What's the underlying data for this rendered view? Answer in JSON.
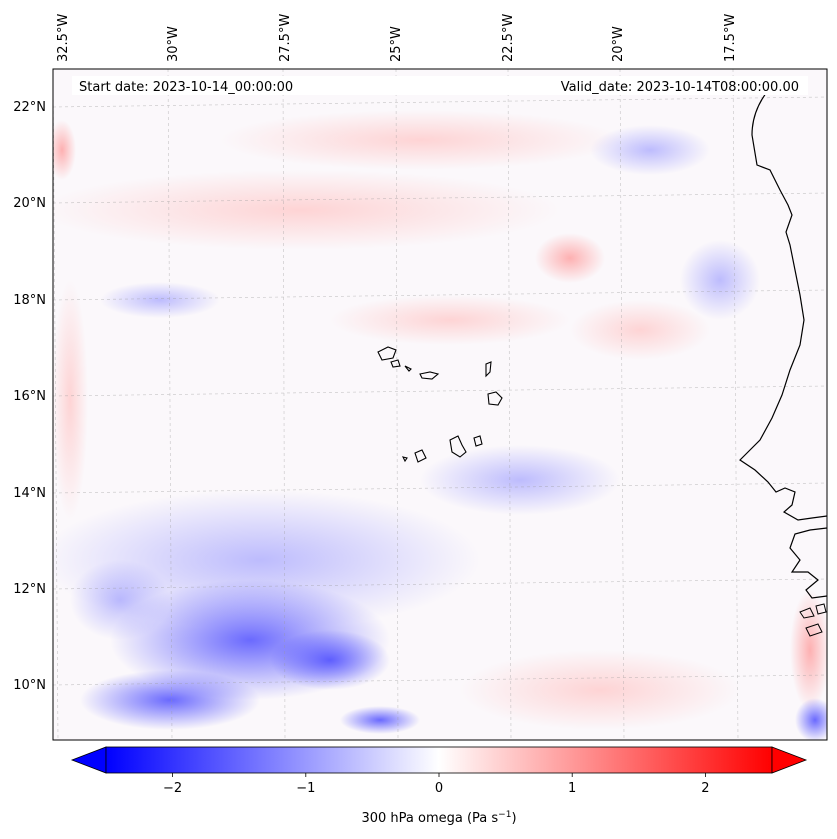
{
  "map": {
    "start_date_label": "Start date: 2023-10-14_00:00:00",
    "valid_date_label": "Valid_date: 2023-10-14T08:00:00.00",
    "lon_ticks": [
      "32.5°W",
      "30°W",
      "27.5°W",
      "25°W",
      "22.5°W",
      "20°W",
      "17.5°W"
    ],
    "lat_ticks": [
      "22°N",
      "20°N",
      "18°N",
      "16°N",
      "14°N",
      "12°N",
      "10°N"
    ],
    "gridlines": true,
    "coastline_color": "#000000"
  },
  "colorbar": {
    "label": "300 hPa omega (Pa s",
    "label_superscript": "−1",
    "label_suffix": ")",
    "tick_labels": [
      "−2",
      "−1",
      "0",
      "1",
      "2"
    ],
    "tick_values": [
      -2,
      -1,
      0,
      1,
      2
    ],
    "range": [
      -2.5,
      2.5
    ],
    "extend": "both",
    "color_min": "#0000ff",
    "color_mid": "#ffffff",
    "color_max": "#ff0000"
  }
}
